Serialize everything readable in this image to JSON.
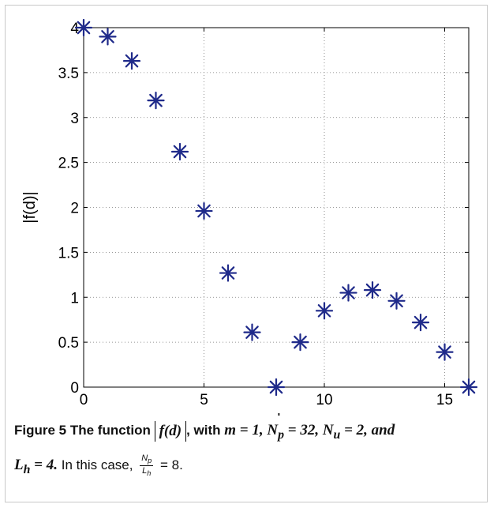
{
  "chart_data": {
    "type": "scatter",
    "title": "",
    "xlabel": "d",
    "ylabel": "|f(d)|",
    "xlim": [
      0,
      16
    ],
    "ylim": [
      0,
      4
    ],
    "xticks": [
      0,
      5,
      10,
      15
    ],
    "yticks": [
      0,
      0.5,
      1,
      1.5,
      2,
      2.5,
      3,
      3.5,
      4
    ],
    "xtick_labels": [
      "0",
      "5",
      "10",
      "15"
    ],
    "ytick_labels": [
      "0",
      "0.5",
      "1",
      "1.5",
      "2",
      "2.5",
      "3",
      "3.5",
      "4"
    ],
    "grid": true,
    "marker": "asterisk",
    "marker_color": "#1f2a8a",
    "x": [
      0,
      1,
      2,
      3,
      4,
      5,
      6,
      7,
      8,
      9,
      10,
      11,
      12,
      13,
      14,
      15,
      16
    ],
    "y": [
      4.0,
      3.9,
      3.63,
      3.19,
      2.62,
      1.96,
      1.27,
      0.61,
      0.0,
      0.5,
      0.85,
      1.05,
      1.08,
      0.96,
      0.72,
      0.39,
      0.0
    ]
  },
  "caption": {
    "figure_label": "Figure 5",
    "text_1": "The function",
    "abs_expr": "f(d)",
    "text_2": ", with",
    "m_expr": "m = 1,",
    "np_expr": "N",
    "np_sub": "p",
    "np_rest": " = 32,",
    "nu_expr": "N",
    "nu_sub": "u",
    "nu_rest": " = 2, and",
    "lh_expr": "L",
    "lh_sub": "h",
    "lh_rest": " = 4.",
    "text_3": "In this case,",
    "frac_num": "N",
    "frac_num_sub": "p",
    "frac_den": "L",
    "frac_den_sub": "h",
    "text_4": " = 8."
  }
}
